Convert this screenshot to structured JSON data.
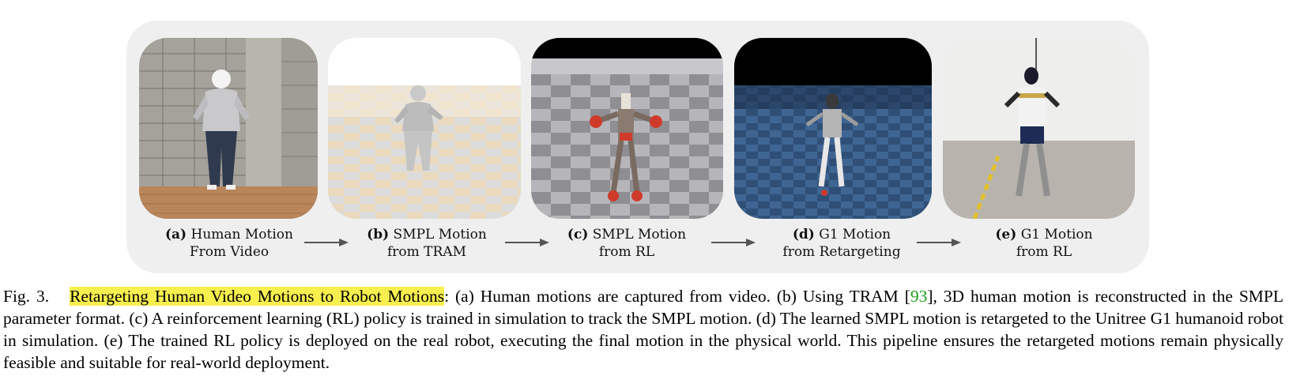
{
  "panels": [
    {
      "letter": "(a)",
      "line1": "Human Motion",
      "line2": "From Video"
    },
    {
      "letter": "(b)",
      "line1": "SMPL Motion",
      "line2": "from TRAM"
    },
    {
      "letter": "(c)",
      "line1": "SMPL Motion",
      "line2": "from RL"
    },
    {
      "letter": "(d)",
      "line1": "G1 Motion",
      "line2": "from Retargeting"
    },
    {
      "letter": "(e)",
      "line1": "G1 Motion",
      "line2": "from RL"
    }
  ],
  "caption": {
    "fig_label": "Fig. 3.",
    "title": "Retargeting Human Video Motions to Robot Motions",
    "pre_cite": ": (a) Human motions are captured from video. (b) Using TRAM [",
    "cite": "93",
    "post_cite": "], 3D human motion is reconstructed in the SMPL parameter format. (c) A reinforcement learning (RL) policy is trained in simulation to track the SMPL motion. (d) The learned SMPL motion is retargeted to the Unitree G1 humanoid robot in simulation. (e) The trained RL policy is deployed on the real robot, executing the final motion in the physical world. This pipeline ensures the retargeted motions remain physically feasible and suitable for real-world deployment."
  },
  "colors": {
    "highlight": "#f7ef4e",
    "citation": "#1aa01a",
    "panel_bg": "#efefef",
    "arrow": "#555555"
  }
}
